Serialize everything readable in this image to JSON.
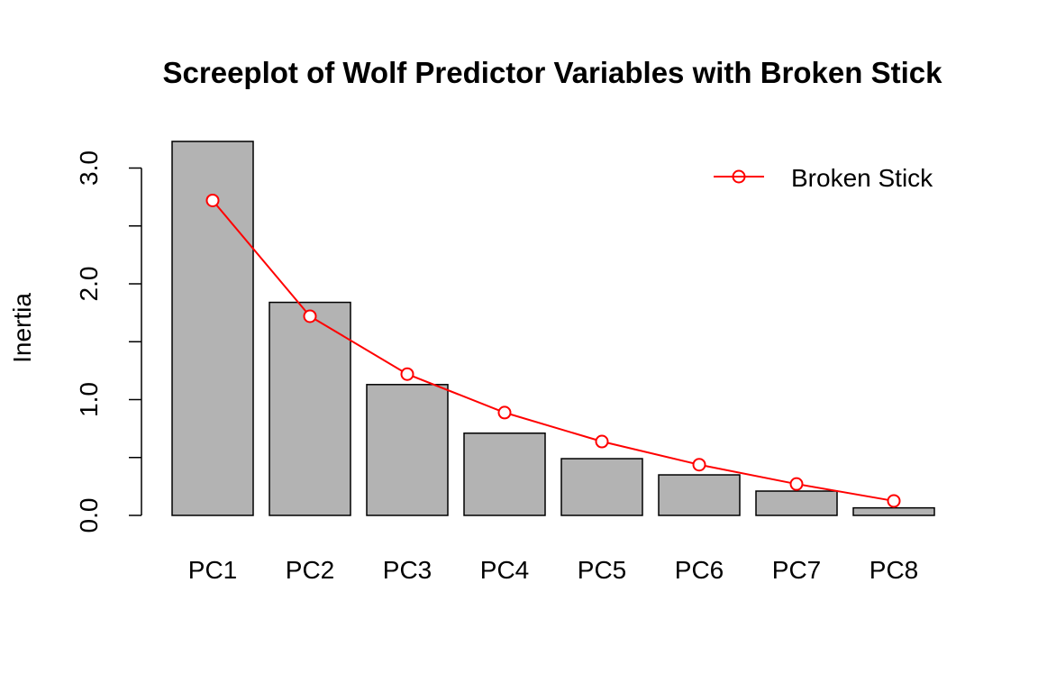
{
  "chart_data": {
    "type": "bar",
    "title": "Screeplot of Wolf Predictor Variables with Broken Stick",
    "xlabel": "",
    "ylabel": "Inertia",
    "categories": [
      "PC1",
      "PC2",
      "PC3",
      "PC4",
      "PC5",
      "PC6",
      "PC7",
      "PC8"
    ],
    "series": [
      {
        "values": [
          3.23,
          1.84,
          1.13,
          0.71,
          0.49,
          0.35,
          0.21,
          0.065
        ],
        "color": "#b3b3b3",
        "type": "bar"
      },
      {
        "name": "Broken Stick",
        "values": [
          2.72,
          1.72,
          1.22,
          0.888,
          0.638,
          0.438,
          0.271,
          0.125
        ],
        "color": "#ff0000",
        "type": "line-points"
      }
    ],
    "yticks": [
      0.0,
      1.0,
      2.0,
      3.0
    ],
    "ytick_labels": [
      "0.0",
      "1.0",
      "2.0",
      "3.0"
    ],
    "ylim": [
      0,
      3.23
    ],
    "grid": false,
    "legend_position": "top-right"
  }
}
